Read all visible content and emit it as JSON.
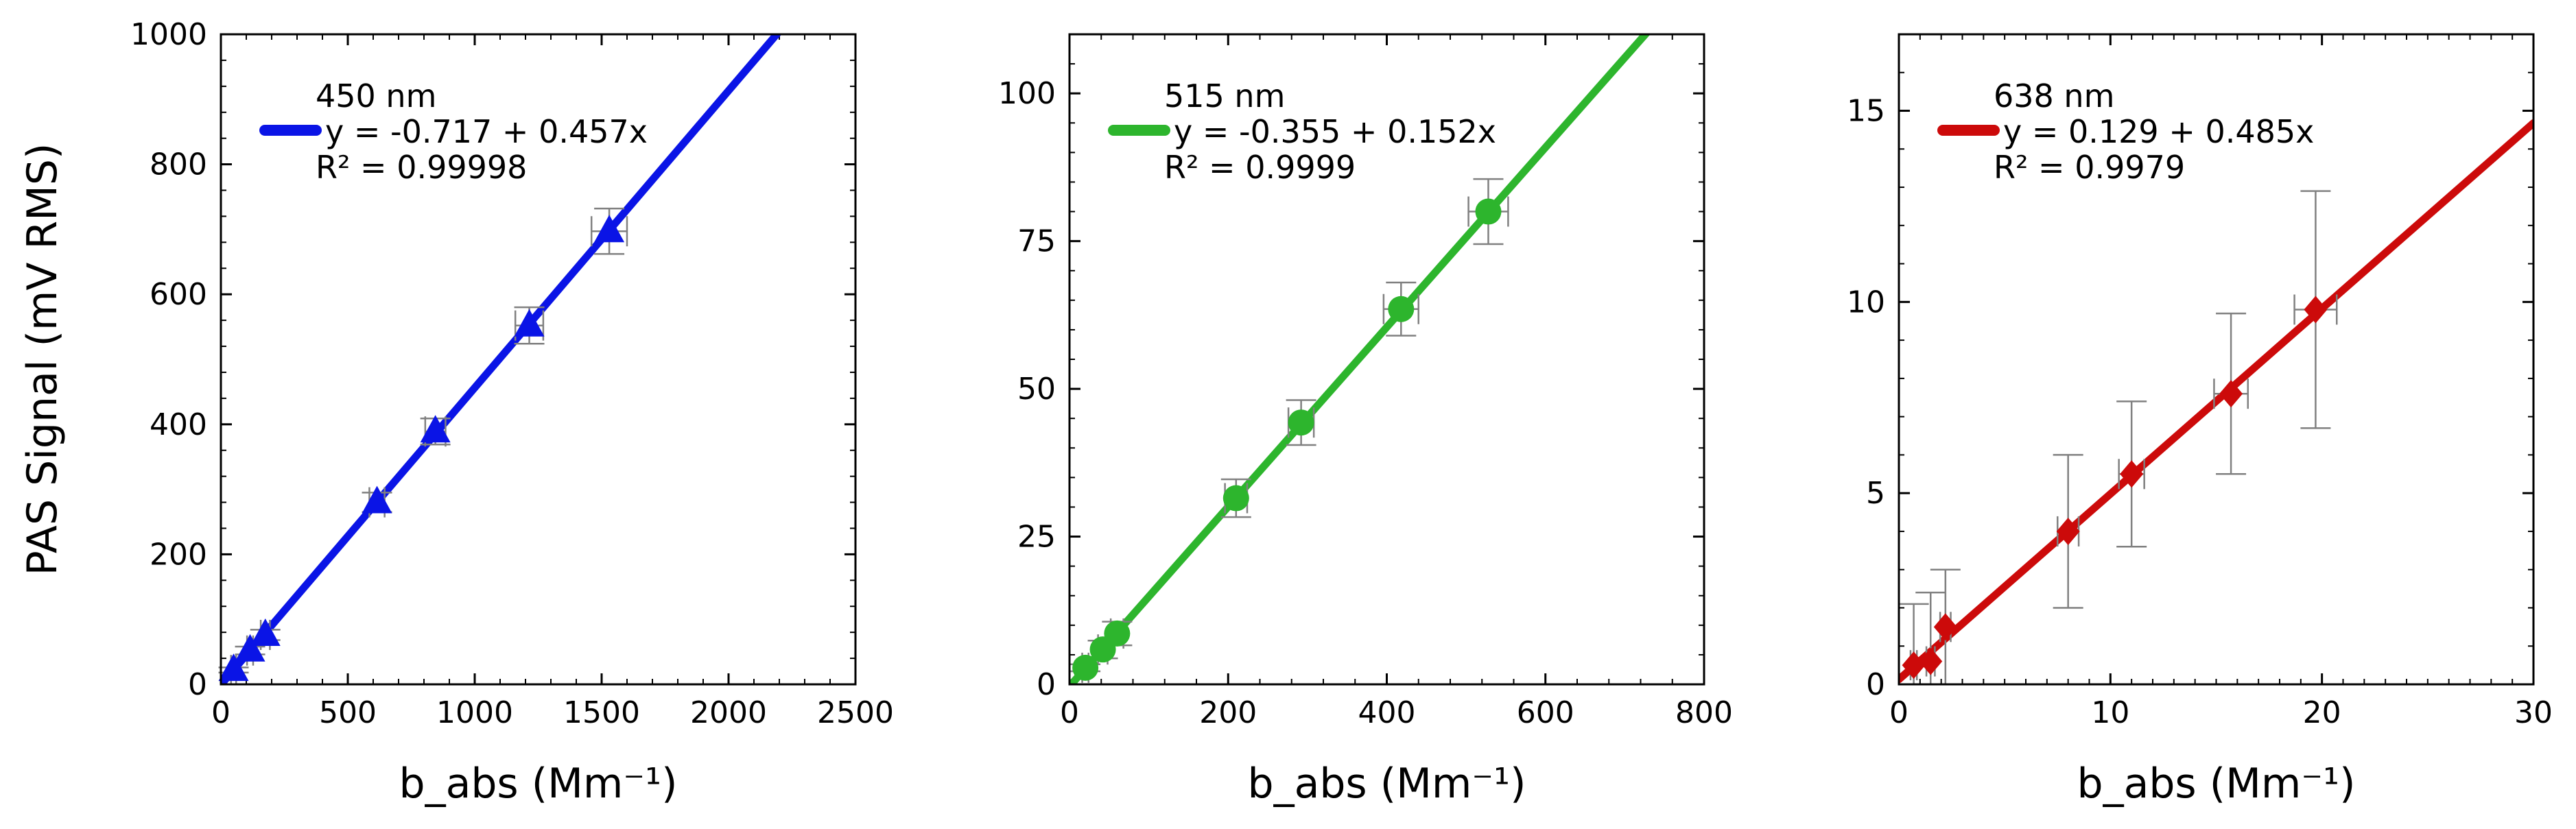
{
  "figure": {
    "ylabel": "PAS Signal (mV RMS)"
  },
  "chart_data": [
    {
      "type": "scatter",
      "xlabel": "b_abs (Mm⁻¹)",
      "ylabel": "PAS Signal (mV RMS)",
      "xlim": [
        0,
        2500
      ],
      "ylim": [
        0,
        1000
      ],
      "xticks": [
        0,
        500,
        1000,
        1500,
        2000,
        2500
      ],
      "yticks": [
        0,
        200,
        400,
        600,
        800,
        1000
      ],
      "x_minor_step": 100,
      "y_minor_step": 40,
      "grid": false,
      "legend_position": "top-left",
      "legend": {
        "title": "450 nm",
        "equation": "y = -0.717 + 0.457x",
        "r2": "R² = 0.99998"
      },
      "color": "#0a14e6",
      "marker": "triangle",
      "fit": {
        "intercept": -0.717,
        "slope": 0.457
      },
      "points": [
        {
          "x": 50,
          "y": 22,
          "xerr": 10,
          "yerr": 4
        },
        {
          "x": 115,
          "y": 52,
          "xerr": 12,
          "yerr": 6
        },
        {
          "x": 175,
          "y": 76,
          "xerr": 18,
          "yerr": 8
        },
        {
          "x": 615,
          "y": 280,
          "xerr": 30,
          "yerr": 15
        },
        {
          "x": 845,
          "y": 389,
          "xerr": 40,
          "yerr": 20
        },
        {
          "x": 1215,
          "y": 552,
          "xerr": 55,
          "yerr": 28
        },
        {
          "x": 1530,
          "y": 697,
          "xerr": 70,
          "yerr": 35
        }
      ]
    },
    {
      "type": "scatter",
      "xlabel": "b_abs (Mm⁻¹)",
      "ylabel": "",
      "xlim": [
        0,
        800
      ],
      "ylim": [
        0,
        110
      ],
      "xticks": [
        0,
        200,
        400,
        600,
        800
      ],
      "yticks": [
        0,
        25,
        50,
        75,
        100
      ],
      "x_minor_step": 40,
      "y_minor_step": 5,
      "grid": false,
      "legend_position": "top-left",
      "legend": {
        "title": "515 nm",
        "equation": "y = -0.355 + 0.152x",
        "r2": "R² = 0.9999"
      },
      "color": "#2db52d",
      "marker": "circle",
      "fit": {
        "intercept": -0.355,
        "slope": 0.152
      },
      "points": [
        {
          "x": 20,
          "y": 2.8,
          "xerr": 4,
          "yerr": 0.6
        },
        {
          "x": 42,
          "y": 5.9,
          "xerr": 6,
          "yerr": 1.5
        },
        {
          "x": 60,
          "y": 8.6,
          "xerr": 8,
          "yerr": 2
        },
        {
          "x": 210,
          "y": 31.5,
          "xerr": 14,
          "yerr": 3.2
        },
        {
          "x": 292,
          "y": 44.3,
          "xerr": 16,
          "yerr": 3.8
        },
        {
          "x": 418,
          "y": 63.5,
          "xerr": 22,
          "yerr": 4.5
        },
        {
          "x": 528,
          "y": 80,
          "xerr": 25,
          "yerr": 5.5
        }
      ]
    },
    {
      "type": "scatter",
      "xlabel": "b_abs (Mm⁻¹)",
      "ylabel": "",
      "xlim": [
        0,
        30
      ],
      "ylim": [
        0,
        17
      ],
      "xticks": [
        0,
        10,
        20,
        30
      ],
      "yticks": [
        0,
        5,
        10,
        15
      ],
      "x_minor_step": 1,
      "y_minor_step": 1,
      "grid": false,
      "legend_position": "top-left",
      "legend": {
        "title": "638 nm",
        "equation": "y = 0.129 + 0.485x",
        "r2": "R² = 0.9979"
      },
      "color": "#cc0a0a",
      "marker": "diamond",
      "fit": {
        "intercept": 0.129,
        "slope": 0.485
      },
      "points": [
        {
          "x": 0.7,
          "y": 0.5,
          "xerr": 0.15,
          "yerr": 1.6
        },
        {
          "x": 1.5,
          "y": 0.6,
          "xerr": 0.2,
          "yerr": 1.8
        },
        {
          "x": 2.2,
          "y": 1.5,
          "xerr": 0.25,
          "yerr": 1.5
        },
        {
          "x": 8.0,
          "y": 4.0,
          "xerr": 0.5,
          "yerr": 2.0
        },
        {
          "x": 11.0,
          "y": 5.5,
          "xerr": 0.6,
          "yerr": 1.9
        },
        {
          "x": 15.7,
          "y": 7.6,
          "xerr": 0.8,
          "yerr": 2.1
        },
        {
          "x": 19.7,
          "y": 9.8,
          "xerr": 1.0,
          "yerr": 3.1
        }
      ]
    }
  ]
}
